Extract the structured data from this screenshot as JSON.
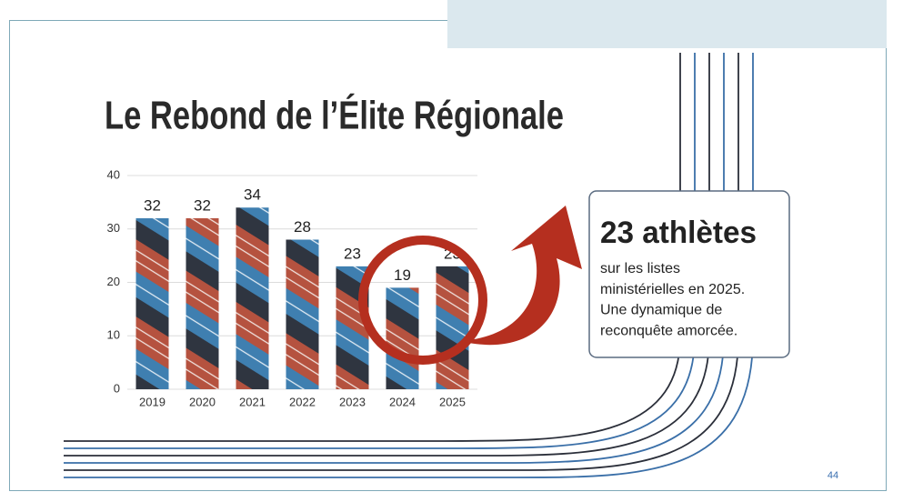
{
  "chart_data": {
    "type": "bar",
    "title": "Le Rebond de l’Élite Régionale",
    "categories": [
      "2019",
      "2020",
      "2021",
      "2022",
      "2023",
      "2024",
      "2025"
    ],
    "values": [
      32,
      32,
      34,
      28,
      23,
      19,
      23
    ],
    "ylim": [
      0,
      40
    ],
    "yticks": [
      0,
      10,
      20,
      30,
      40
    ],
    "grid": true
  },
  "callout": {
    "heading": "23 athlètes",
    "lines": [
      "sur les listes",
      "ministérielles en 2025.",
      "Une dynamique de",
      "reconquête amorcée."
    ]
  },
  "page_number": "44"
}
